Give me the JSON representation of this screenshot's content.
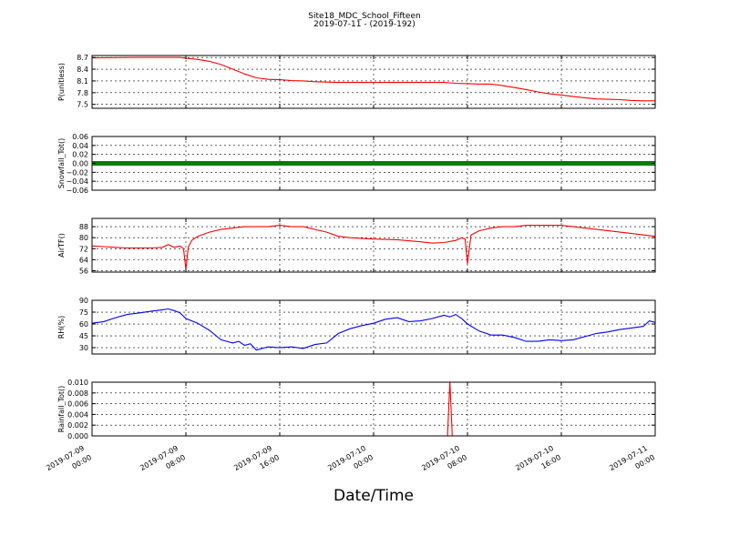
{
  "title_line1": "Site18_MDC_School_Fifteen",
  "title_line2": "2019-07-11 - (2019-192)",
  "xlabel": "Date/Time",
  "x_ticks": [
    [
      "2019-07-09",
      "00:00"
    ],
    [
      "2019-07-09",
      "08:00"
    ],
    [
      "2019-07-09",
      "16:00"
    ],
    [
      "2019-07-10",
      "00:00"
    ],
    [
      "2019-07-10",
      "08:00"
    ],
    [
      "2019-07-10",
      "16:00"
    ],
    [
      "2019-07-11",
      "00:00"
    ]
  ],
  "colors": {
    "red": "#ff0000",
    "green": "#008000",
    "blue": "#0000ff"
  },
  "chart_data": [
    {
      "type": "line",
      "ylabel": "P(unitless)",
      "ylim": [
        7.4,
        8.75
      ],
      "yticks": [
        "7.5",
        "7.8",
        "8.1",
        "8.4",
        "8.7"
      ],
      "ytick_values": [
        7.5,
        7.8,
        8.1,
        8.4,
        8.7
      ],
      "color": "red",
      "grid": true,
      "x_unit": "hours since 2019-07-09 00:00",
      "x": [
        0,
        4,
        7.5,
        8,
        9,
        10,
        11,
        12,
        13,
        14,
        15,
        16,
        17,
        18,
        19,
        20,
        21,
        22,
        24,
        26,
        28,
        30,
        31,
        32,
        33,
        34,
        35,
        36,
        37,
        38,
        39,
        40,
        41,
        42,
        43,
        44,
        45,
        46,
        47,
        48
      ],
      "y": [
        8.69,
        8.7,
        8.7,
        8.68,
        8.65,
        8.6,
        8.52,
        8.4,
        8.28,
        8.18,
        8.14,
        8.13,
        8.11,
        8.1,
        8.08,
        8.07,
        8.06,
        8.06,
        8.06,
        8.06,
        8.06,
        8.06,
        8.04,
        8.03,
        8.02,
        8.02,
        7.98,
        7.93,
        7.88,
        7.82,
        7.77,
        7.74,
        7.7,
        7.67,
        7.64,
        7.63,
        7.62,
        7.6,
        7.59,
        7.59
      ]
    },
    {
      "type": "scatter",
      "ylabel": "Snowfall_Tot()",
      "ylim": [
        -0.06,
        0.06
      ],
      "yticks": [
        "−0.06",
        "−0.04",
        "−0.02",
        "0.00",
        "0.02",
        "0.04",
        "0.06"
      ],
      "ytick_values": [
        -0.06,
        -0.04,
        -0.02,
        0,
        0.02,
        0.04,
        0.06
      ],
      "color": "green",
      "grid": true,
      "x_unit": "hours since 2019-07-09 00:00",
      "x": [
        0,
        48
      ],
      "y": [
        0,
        0
      ]
    },
    {
      "type": "line",
      "ylabel": "AirTF()",
      "ylim": [
        55,
        94
      ],
      "yticks": [
        "56",
        "64",
        "72",
        "80",
        "88"
      ],
      "ytick_values": [
        56,
        64,
        72,
        80,
        88
      ],
      "color": "red",
      "grid": true,
      "x_unit": "hours since 2019-07-09 00:00",
      "x": [
        0,
        1,
        2,
        3,
        4,
        5,
        6,
        6.5,
        7,
        7.5,
        7.8,
        8,
        8.2,
        8.5,
        9,
        10,
        11,
        12,
        13,
        14,
        15,
        16,
        17,
        18,
        19,
        20,
        21,
        22,
        24,
        26,
        28,
        29,
        30,
        31,
        31.5,
        31.8,
        32,
        32.3,
        33,
        34,
        35,
        36,
        37,
        38,
        39,
        40,
        41,
        42,
        43,
        44,
        45,
        46,
        47,
        48
      ],
      "y": [
        74,
        73.5,
        73,
        72.5,
        72.5,
        72.5,
        73,
        75,
        73,
        74,
        72,
        57,
        73,
        78,
        81,
        84,
        86,
        87,
        88,
        88,
        88,
        89,
        88,
        88,
        86,
        84,
        81,
        80,
        79,
        78.5,
        77,
        76,
        76.5,
        78,
        80,
        79,
        61,
        82,
        85,
        87,
        88,
        88,
        89,
        89,
        89,
        89,
        88,
        87,
        86,
        85,
        84,
        83,
        82,
        81
      ]
    },
    {
      "type": "line",
      "ylabel": "RH(%)",
      "ylim": [
        22,
        90
      ],
      "yticks": [
        "30",
        "45",
        "60",
        "75",
        "90"
      ],
      "ytick_values": [
        30,
        45,
        60,
        75,
        90
      ],
      "color": "blue",
      "grid": true,
      "x_unit": "hours since 2019-07-09 00:00",
      "x": [
        0,
        1,
        2,
        3,
        4,
        5,
        6,
        6.5,
        7,
        7.5,
        8,
        9,
        10,
        11,
        12,
        12.5,
        13,
        13.5,
        14,
        14.5,
        15,
        16,
        17,
        18,
        19,
        20,
        21,
        22,
        23,
        24,
        25,
        26,
        27,
        28,
        29,
        29.5,
        30,
        30.5,
        31,
        31.5,
        32,
        33,
        34,
        35,
        36,
        37,
        38,
        39,
        40,
        41,
        42,
        43,
        44,
        45,
        46,
        47,
        47.5,
        48
      ],
      "y": [
        61,
        63,
        68,
        72,
        74,
        76,
        78,
        79,
        77,
        74,
        67,
        61,
        52,
        40,
        36,
        38,
        33,
        35,
        27,
        29,
        31,
        30,
        31,
        29,
        34,
        36,
        48,
        54,
        58,
        61,
        66,
        68,
        63,
        64,
        67,
        69,
        71,
        69,
        72,
        67,
        60,
        51,
        46,
        46,
        43,
        38,
        38,
        40,
        39,
        40,
        44,
        48,
        50,
        53,
        55,
        57,
        64,
        62
      ]
    },
    {
      "type": "line",
      "ylabel": "Rainfall_Tot()",
      "ylim": [
        0,
        0.01
      ],
      "yticks": [
        "0.000",
        "0.002",
        "0.004",
        "0.006",
        "0.008",
        "0.010"
      ],
      "ytick_values": [
        0,
        0.002,
        0.004,
        0.006,
        0.008,
        0.01
      ],
      "color": "red",
      "grid": true,
      "x_unit": "hours since 2019-07-09 00:00",
      "x": [
        0,
        30.3,
        30.5,
        30.7,
        48
      ],
      "y": [
        0,
        0,
        0.0101,
        0,
        0
      ]
    }
  ]
}
